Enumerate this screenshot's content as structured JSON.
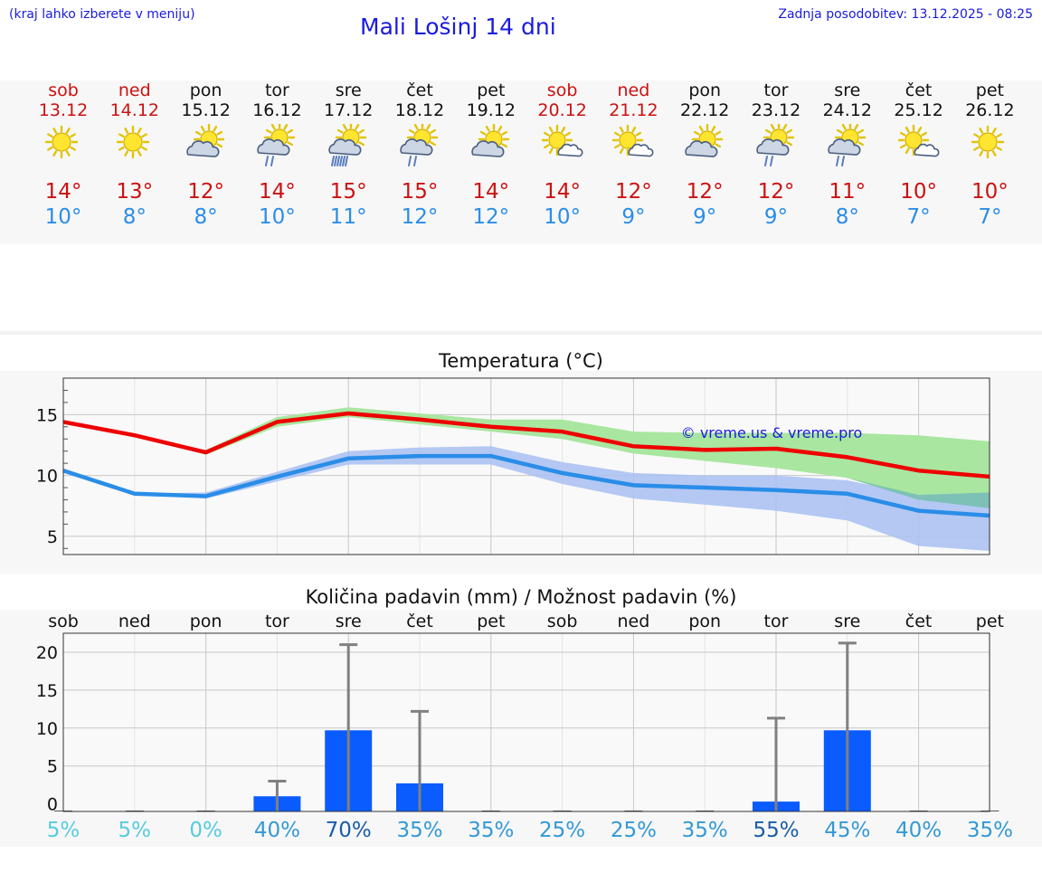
{
  "header": {
    "location_note": "(kraj lahko izberete v meniju)",
    "title": "Mali Lošinj 14 dni",
    "updated": "Zadnja posodobitev: 13.12.2025 - 08:25"
  },
  "colors": {
    "title_blue": "#1a1adf",
    "max_temp": "#cc1111",
    "min_temp": "#2a8de8",
    "max_band": "#a9e6a0",
    "min_band": "#a8c0f2",
    "bar": "#0a5cff",
    "error_bar": "#808080"
  },
  "days": [
    {
      "name": "sob",
      "date": "13.12",
      "weekend": true,
      "icon": "sun-icon",
      "max": "14°",
      "min": "10°"
    },
    {
      "name": "ned",
      "date": "14.12",
      "weekend": true,
      "icon": "sun-icon",
      "max": "13°",
      "min": "8°"
    },
    {
      "name": "pon",
      "date": "15.12",
      "weekend": false,
      "icon": "sun-cloud-icon",
      "max": "12°",
      "min": "8°"
    },
    {
      "name": "tor",
      "date": "16.12",
      "weekend": false,
      "icon": "sun-cloud-rain-icon",
      "max": "14°",
      "min": "10°"
    },
    {
      "name": "sre",
      "date": "17.12",
      "weekend": false,
      "icon": "sun-cloud-heavy-rain-icon",
      "max": "15°",
      "min": "11°"
    },
    {
      "name": "čet",
      "date": "18.12",
      "weekend": false,
      "icon": "sun-cloud-rain-icon",
      "max": "15°",
      "min": "12°"
    },
    {
      "name": "pet",
      "date": "19.12",
      "weekend": false,
      "icon": "sun-cloud-icon",
      "max": "14°",
      "min": "12°"
    },
    {
      "name": "sob",
      "date": "20.12",
      "weekend": true,
      "icon": "sun-small-cloud-icon",
      "max": "14°",
      "min": "10°"
    },
    {
      "name": "ned",
      "date": "21.12",
      "weekend": true,
      "icon": "sun-small-cloud-icon",
      "max": "12°",
      "min": "9°"
    },
    {
      "name": "pon",
      "date": "22.12",
      "weekend": false,
      "icon": "sun-cloud-icon",
      "max": "12°",
      "min": "9°"
    },
    {
      "name": "tor",
      "date": "23.12",
      "weekend": false,
      "icon": "sun-cloud-rain-icon",
      "max": "12°",
      "min": "9°"
    },
    {
      "name": "sre",
      "date": "24.12",
      "weekend": false,
      "icon": "sun-cloud-rain-icon",
      "max": "11°",
      "min": "8°"
    },
    {
      "name": "čet",
      "date": "25.12",
      "weekend": false,
      "icon": "sun-small-cloud-icon",
      "max": "10°",
      "min": "7°"
    },
    {
      "name": "pet",
      "date": "26.12",
      "weekend": false,
      "icon": "sun-icon",
      "max": "10°",
      "min": "7°"
    }
  ],
  "chart_data": [
    {
      "type": "line",
      "title": "Temperatura (°C)",
      "ylim": [
        3.5,
        18
      ],
      "yticks": [
        5,
        10,
        15
      ],
      "watermark": "© vreme.us & vreme.pro",
      "x": [
        0,
        1,
        2,
        3,
        4,
        5,
        6,
        7,
        8,
        9,
        10,
        11,
        12,
        13
      ],
      "series": [
        {
          "name": "max",
          "color": "#ee0000",
          "values": [
            14.4,
            13.3,
            11.9,
            14.4,
            15.1,
            14.6,
            14.0,
            13.6,
            12.4,
            12.1,
            12.2,
            11.5,
            10.4,
            9.9
          ],
          "band_low": [
            14.4,
            13.3,
            11.7,
            14.0,
            14.8,
            14.2,
            13.6,
            13.0,
            11.8,
            11.2,
            10.6,
            9.8,
            8.0,
            7.3
          ],
          "band_high": [
            14.4,
            13.3,
            12.1,
            14.8,
            15.6,
            15.1,
            14.6,
            14.6,
            13.6,
            13.5,
            13.5,
            13.5,
            13.3,
            12.8
          ]
        },
        {
          "name": "min",
          "color": "#2a8de8",
          "values": [
            10.4,
            8.5,
            8.3,
            9.9,
            11.4,
            11.6,
            11.6,
            10.2,
            9.2,
            9.0,
            8.8,
            8.5,
            7.1,
            6.7
          ],
          "band_low": [
            10.4,
            8.5,
            8.1,
            9.5,
            10.9,
            10.9,
            10.9,
            9.3,
            8.1,
            7.6,
            7.1,
            6.3,
            4.2,
            3.8
          ],
          "band_high": [
            10.4,
            8.5,
            8.6,
            10.3,
            12.0,
            12.3,
            12.4,
            11.1,
            10.2,
            10.0,
            10.0,
            9.6,
            8.4,
            8.6
          ]
        }
      ]
    },
    {
      "type": "bar",
      "title": "Količina padavin (mm) / Možnost padavin (%)",
      "ylim": [
        -1,
        22.5
      ],
      "yticks": [
        0,
        5,
        10,
        15,
        20
      ],
      "categories": [
        "sob",
        "ned",
        "pon",
        "tor",
        "sre",
        "čet",
        "pet",
        "sob",
        "ned",
        "pon",
        "tor",
        "sre",
        "čet",
        "pet"
      ],
      "values": [
        0,
        0,
        0,
        1.0,
        9.7,
        2.7,
        0,
        0,
        0,
        0,
        0.3,
        9.7,
        0,
        0
      ],
      "error_high": [
        0,
        0,
        0,
        3.0,
        21.0,
        12.2,
        0,
        0,
        0,
        0,
        11.3,
        21.2,
        0,
        0
      ],
      "probability": [
        "5%",
        "5%",
        "0%",
        "40%",
        "70%",
        "35%",
        "35%",
        "25%",
        "25%",
        "35%",
        "55%",
        "45%",
        "40%",
        "35%"
      ],
      "probability_colors": [
        "#55cce0",
        "#55cce0",
        "#55cce0",
        "#3399d6",
        "#1a5da8",
        "#3399d6",
        "#3399d6",
        "#3399d6",
        "#3399d6",
        "#3399d6",
        "#1a5da8",
        "#3399d6",
        "#3399d6",
        "#3399d6"
      ]
    }
  ]
}
